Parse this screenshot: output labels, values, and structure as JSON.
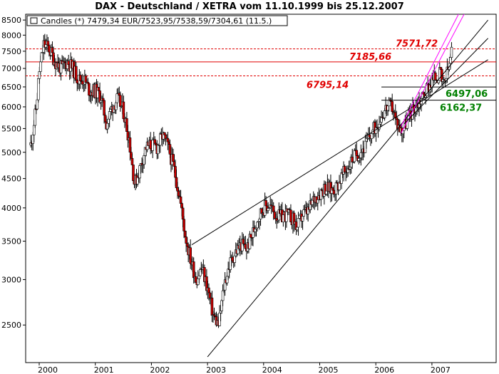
{
  "chart_data": {
    "type": "candlestick",
    "title": "DAX - Deutschland / XETRA vom 11.10.1999 bis 25.12.2007",
    "legend": {
      "label": "Candles (*) 7479,34 EUR/7523,95/7538,59/7304,61 (11.5.)",
      "placement": "top-left"
    },
    "y_scale": "log",
    "ylim": [
      2150,
      8700
    ],
    "y_ticks": [
      2500,
      3000,
      3500,
      4000,
      4500,
      5000,
      5500,
      6000,
      6500,
      7000,
      7500,
      8000,
      8500
    ],
    "x_ticks": [
      "2000",
      "2001",
      "2002",
      "2003",
      "2004",
      "2005",
      "2006",
      "2007"
    ],
    "grid": false,
    "colors": {
      "up_candle": "#ffffff",
      "down_candle": "#cc0000",
      "candle_outline": "#000000",
      "trendline": "#000000",
      "channel": "#ff00ff",
      "red_level": "#e00000",
      "green_level": "#008000"
    },
    "horizontal_levels": [
      {
        "value": 7571.72,
        "label": "7571,72",
        "style": "dashed",
        "color": "#e00000"
      },
      {
        "value": 7185.66,
        "label": "7185,66",
        "style": "solid",
        "color": "#e00000"
      },
      {
        "value": 6795.14,
        "label": "6795,14",
        "style": "dashed",
        "color": "#e00000"
      },
      {
        "value": 6497.06,
        "label": "6497,06",
        "style": "solid",
        "color": "#000000"
      },
      {
        "value": 6162.37,
        "label": "6162,37",
        "style": "solid",
        "color": "#000000"
      }
    ],
    "trendlines": [
      {
        "color": "#000000",
        "x1": 2002.72,
        "y1": 3450,
        "x2": 2008.0,
        "y2": 7250
      },
      {
        "color": "#000000",
        "x1": 2003.0,
        "y1": 2200,
        "x2": 2008.0,
        "y2": 8500
      },
      {
        "color": "#ff00ff",
        "x1": 2006.45,
        "y1": 5400,
        "x2": 2007.6,
        "y2": 8800
      },
      {
        "color": "#ff00ff",
        "x1": 2006.45,
        "y1": 5550,
        "x2": 2007.5,
        "y2": 8800
      },
      {
        "color": "#000000",
        "x1": 2006.5,
        "y1": 5600,
        "x2": 2008.0,
        "y2": 7900
      }
    ],
    "series": [
      {
        "x": 1999.85,
        "y": 5150
      },
      {
        "x": 1999.95,
        "y": 6000
      },
      {
        "x": 2000.0,
        "y": 6900
      },
      {
        "x": 2000.08,
        "y": 7700
      },
      {
        "x": 2000.17,
        "y": 7600
      },
      {
        "x": 2000.3,
        "y": 7150
      },
      {
        "x": 2000.4,
        "y": 7000
      },
      {
        "x": 2000.5,
        "y": 7200
      },
      {
        "x": 2000.6,
        "y": 7000
      },
      {
        "x": 2000.7,
        "y": 6700
      },
      {
        "x": 2000.8,
        "y": 6700
      },
      {
        "x": 2000.9,
        "y": 6400
      },
      {
        "x": 2001.0,
        "y": 6400
      },
      {
        "x": 2001.1,
        "y": 6250
      },
      {
        "x": 2001.2,
        "y": 5600
      },
      {
        "x": 2001.3,
        "y": 6000
      },
      {
        "x": 2001.4,
        "y": 6200
      },
      {
        "x": 2001.5,
        "y": 5900
      },
      {
        "x": 2001.6,
        "y": 5300
      },
      {
        "x": 2001.7,
        "y": 4400
      },
      {
        "x": 2001.8,
        "y": 4700
      },
      {
        "x": 2001.9,
        "y": 5100
      },
      {
        "x": 2002.0,
        "y": 5150
      },
      {
        "x": 2002.1,
        "y": 5100
      },
      {
        "x": 2002.2,
        "y": 5350
      },
      {
        "x": 2002.3,
        "y": 5100
      },
      {
        "x": 2002.4,
        "y": 4700
      },
      {
        "x": 2002.5,
        "y": 4200
      },
      {
        "x": 2002.6,
        "y": 3600
      },
      {
        "x": 2002.7,
        "y": 3250
      },
      {
        "x": 2002.8,
        "y": 3000
      },
      {
        "x": 2002.9,
        "y": 3150
      },
      {
        "x": 2003.0,
        "y": 2900
      },
      {
        "x": 2003.1,
        "y": 2600
      },
      {
        "x": 2003.2,
        "y": 2500
      },
      {
        "x": 2003.3,
        "y": 2950
      },
      {
        "x": 2003.4,
        "y": 3200
      },
      {
        "x": 2003.5,
        "y": 3350
      },
      {
        "x": 2003.6,
        "y": 3450
      },
      {
        "x": 2003.7,
        "y": 3400
      },
      {
        "x": 2003.8,
        "y": 3600
      },
      {
        "x": 2003.9,
        "y": 3850
      },
      {
        "x": 2004.0,
        "y": 4000
      },
      {
        "x": 2004.1,
        "y": 4050
      },
      {
        "x": 2004.2,
        "y": 3900
      },
      {
        "x": 2004.3,
        "y": 3850
      },
      {
        "x": 2004.4,
        "y": 3900
      },
      {
        "x": 2004.5,
        "y": 3850
      },
      {
        "x": 2004.6,
        "y": 3700
      },
      {
        "x": 2004.7,
        "y": 3900
      },
      {
        "x": 2004.8,
        "y": 3950
      },
      {
        "x": 2004.9,
        "y": 4150
      },
      {
        "x": 2005.0,
        "y": 4250
      },
      {
        "x": 2005.1,
        "y": 4350
      },
      {
        "x": 2005.2,
        "y": 4300
      },
      {
        "x": 2005.3,
        "y": 4350
      },
      {
        "x": 2005.4,
        "y": 4550
      },
      {
        "x": 2005.5,
        "y": 4700
      },
      {
        "x": 2005.6,
        "y": 4900
      },
      {
        "x": 2005.7,
        "y": 5000
      },
      {
        "x": 2005.8,
        "y": 5100
      },
      {
        "x": 2005.9,
        "y": 5350
      },
      {
        "x": 2006.0,
        "y": 5550
      },
      {
        "x": 2006.1,
        "y": 5800
      },
      {
        "x": 2006.2,
        "y": 6000
      },
      {
        "x": 2006.3,
        "y": 6000
      },
      {
        "x": 2006.35,
        "y": 5700
      },
      {
        "x": 2006.45,
        "y": 5450
      },
      {
        "x": 2006.55,
        "y": 5650
      },
      {
        "x": 2006.65,
        "y": 5900
      },
      {
        "x": 2006.75,
        "y": 6100
      },
      {
        "x": 2006.85,
        "y": 6300
      },
      {
        "x": 2006.95,
        "y": 6550
      },
      {
        "x": 2007.05,
        "y": 6750
      },
      {
        "x": 2007.15,
        "y": 6850
      },
      {
        "x": 2007.2,
        "y": 6500
      },
      {
        "x": 2007.3,
        "y": 7000
      },
      {
        "x": 2007.35,
        "y": 7500
      }
    ]
  }
}
